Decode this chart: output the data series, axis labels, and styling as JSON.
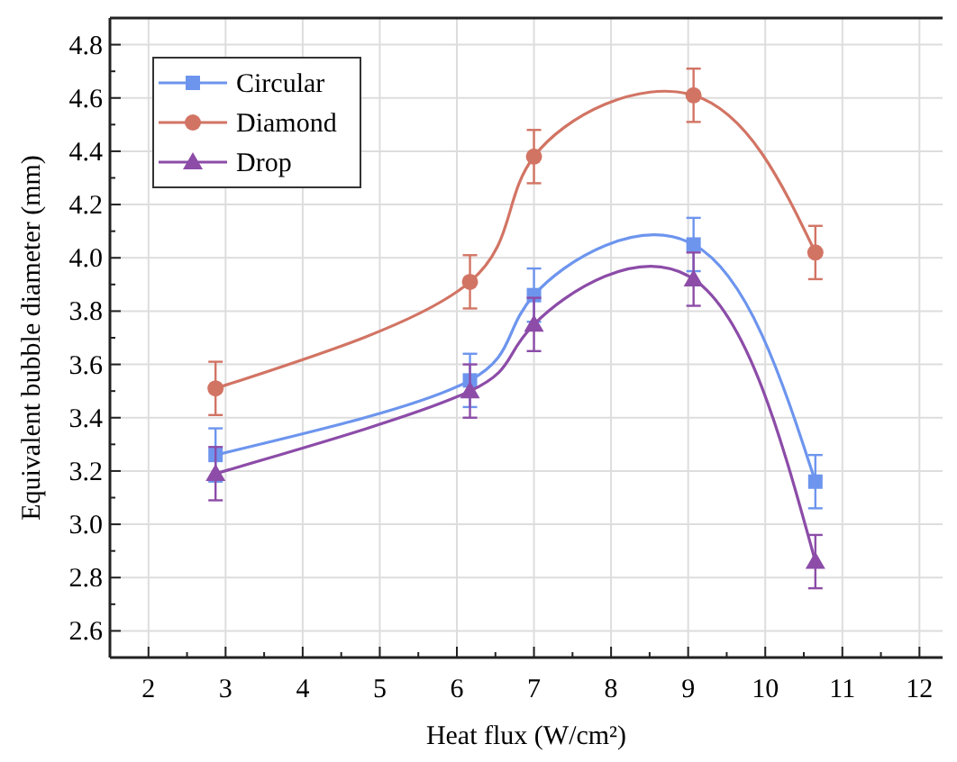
{
  "chart_data": {
    "type": "line",
    "xlabel": "Heat flux (W/cm²)",
    "ylabel": "Equivalent bubble diameter (mm)",
    "x": [
      2.87,
      6.17,
      7.0,
      9.07,
      10.65
    ],
    "series": [
      {
        "name": "Circular",
        "color": "#6d95ee",
        "marker": "square",
        "values": [
          3.26,
          3.54,
          3.86,
          4.05,
          3.16
        ],
        "errors": [
          0.1,
          0.1,
          0.1,
          0.1,
          0.1
        ]
      },
      {
        "name": "Diamond",
        "color": "#d27464",
        "marker": "circle",
        "values": [
          3.51,
          3.91,
          4.38,
          4.61,
          4.02
        ],
        "errors": [
          0.1,
          0.1,
          0.1,
          0.1,
          0.1
        ]
      },
      {
        "name": "Drop",
        "color": "#8c4ca8",
        "marker": "triangle",
        "values": [
          3.19,
          3.5,
          3.75,
          3.92,
          2.86
        ],
        "errors": [
          0.1,
          0.1,
          0.1,
          0.1,
          0.1
        ]
      }
    ],
    "xlim": [
      1.5,
      12.3
    ],
    "xticks": [
      2,
      3,
      4,
      5,
      6,
      7,
      8,
      9,
      10,
      11,
      12
    ],
    "ylim": [
      2.5,
      4.9
    ],
    "yticks": [
      {
        "value": 2.6,
        "label": "2.6"
      },
      {
        "value": 2.8,
        "label": "2.8"
      },
      {
        "value": 3.0,
        "label": "3.0"
      },
      {
        "value": 3.2,
        "label": "3.2"
      },
      {
        "value": 3.4,
        "label": "3.4"
      },
      {
        "value": 3.6,
        "label": "3.6"
      },
      {
        "value": 3.8,
        "label": "3.8"
      },
      {
        "value": 4.0,
        "label": "4.0"
      },
      {
        "value": 4.2,
        "label": "4.2"
      },
      {
        "value": 4.4,
        "label": "4.4"
      },
      {
        "value": 4.6,
        "label": "4.6"
      },
      {
        "value": 4.8,
        "label": "4.8"
      }
    ],
    "grid": true,
    "legend": "top left",
    "line_style": "solid"
  }
}
